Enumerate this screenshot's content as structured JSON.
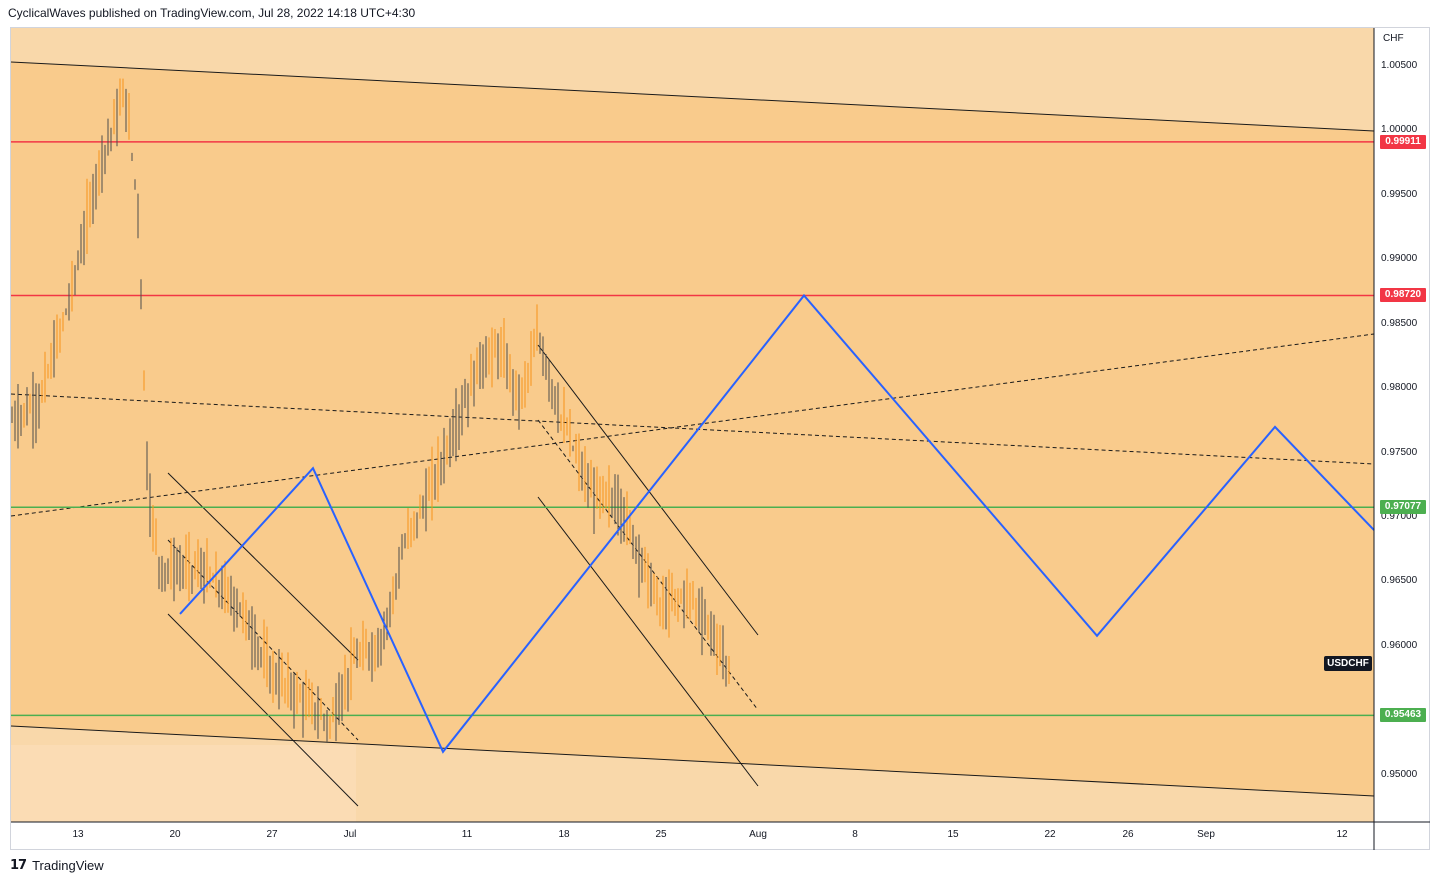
{
  "header": {
    "publish_line": "CyclicalWaves published on TradingView.com, Jul 28, 2022 14:18 UTC+4:30"
  },
  "footer": {
    "brand": "TradingView",
    "logo_glyph": "17"
  },
  "chart_data": {
    "type": "candlestick",
    "symbol": "USDCHF",
    "currency": "CHF",
    "y_axis_ticks": [
      "1.00500",
      "1.00000",
      "0.99500",
      "0.99000",
      "0.98500",
      "0.98000",
      "0.97500",
      "0.97000",
      "0.96500",
      "0.96000",
      "0.95000"
    ],
    "x_axis_ticks": [
      "13",
      "20",
      "27",
      "Jul",
      "11",
      "18",
      "25",
      "Aug",
      "8",
      "15",
      "22",
      "26",
      "Sep",
      "12"
    ],
    "ylim": [
      0.9467,
      1.0085
    ],
    "horizontal_levels": [
      {
        "label": "0.99911",
        "value": 0.99911,
        "color": "#f23645"
      },
      {
        "label": "0.98720",
        "value": 0.9872,
        "color": "#f23645"
      },
      {
        "label": "0.97077",
        "value": 0.97077,
        "color": "#4caf50"
      },
      {
        "label": "0.95463",
        "value": 0.95463,
        "color": "#4caf50"
      }
    ],
    "projection_path": [
      [
        "Jun 20",
        0.9625
      ],
      [
        "Jun 30",
        0.9738
      ],
      [
        "Jul 6",
        0.9518
      ],
      [
        "Aug 3",
        0.9872
      ],
      [
        "Aug 21",
        0.9608
      ],
      [
        "Sep 7",
        0.977
      ],
      [
        "Sep 14",
        0.969
      ]
    ],
    "projection_color": "#2962ff",
    "background_color": "#fbcb8a",
    "candle_color": "#f7931a"
  }
}
